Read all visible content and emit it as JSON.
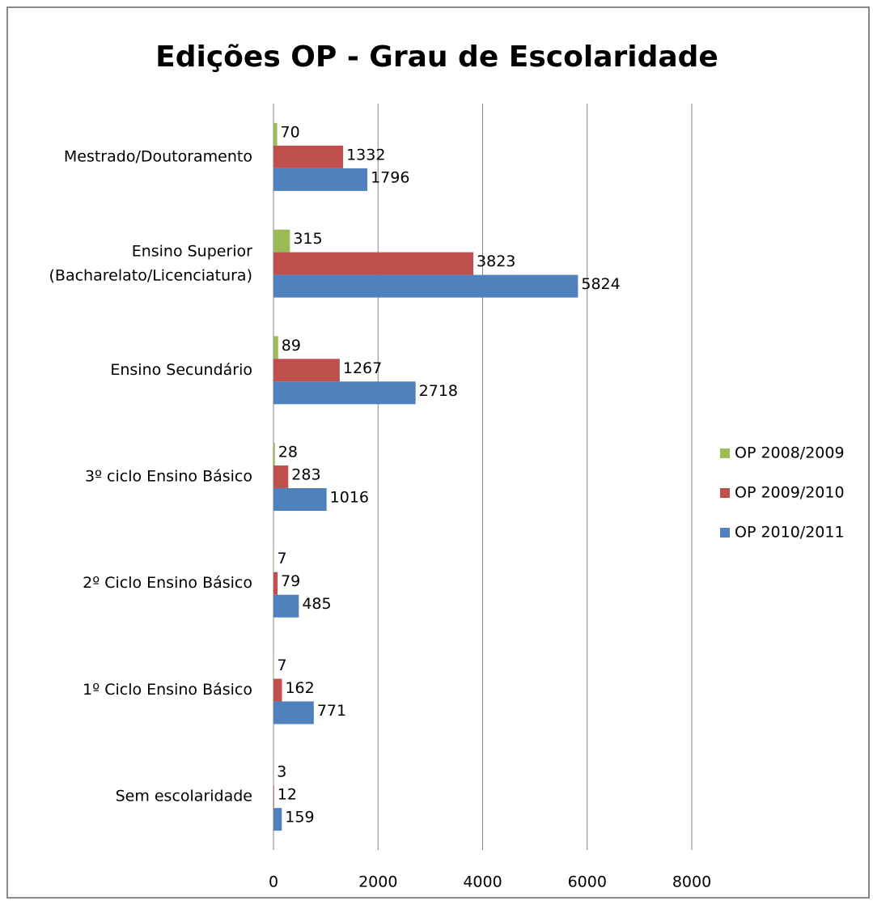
{
  "chart_data": {
    "type": "hbar",
    "title": "Edições OP - Grau de Escolaridade",
    "categories": [
      "Mestrado/Doutoramento",
      "Ensino Superior (Bacharelato/Licenciatura)",
      "Ensino Secundário",
      "3º ciclo Ensino Básico",
      "2º Ciclo Ensino Básico",
      "1º Ciclo Ensino Básico",
      "Sem escolaridade"
    ],
    "series": [
      {
        "name": "OP 2008/2009",
        "color": "#9bbb59",
        "values": [
          70,
          315,
          89,
          28,
          7,
          7,
          3
        ]
      },
      {
        "name": "OP 2009/2010",
        "color": "#c0504d",
        "values": [
          1332,
          3823,
          1267,
          283,
          79,
          162,
          12
        ]
      },
      {
        "name": "OP 2010/2011",
        "color": "#4f81bd",
        "values": [
          1796,
          5824,
          2718,
          1016,
          485,
          771,
          159
        ]
      }
    ],
    "xlim": [
      0,
      8000
    ],
    "xticks": [
      0,
      2000,
      4000,
      6000,
      8000
    ],
    "grid": true,
    "legend": "right"
  }
}
